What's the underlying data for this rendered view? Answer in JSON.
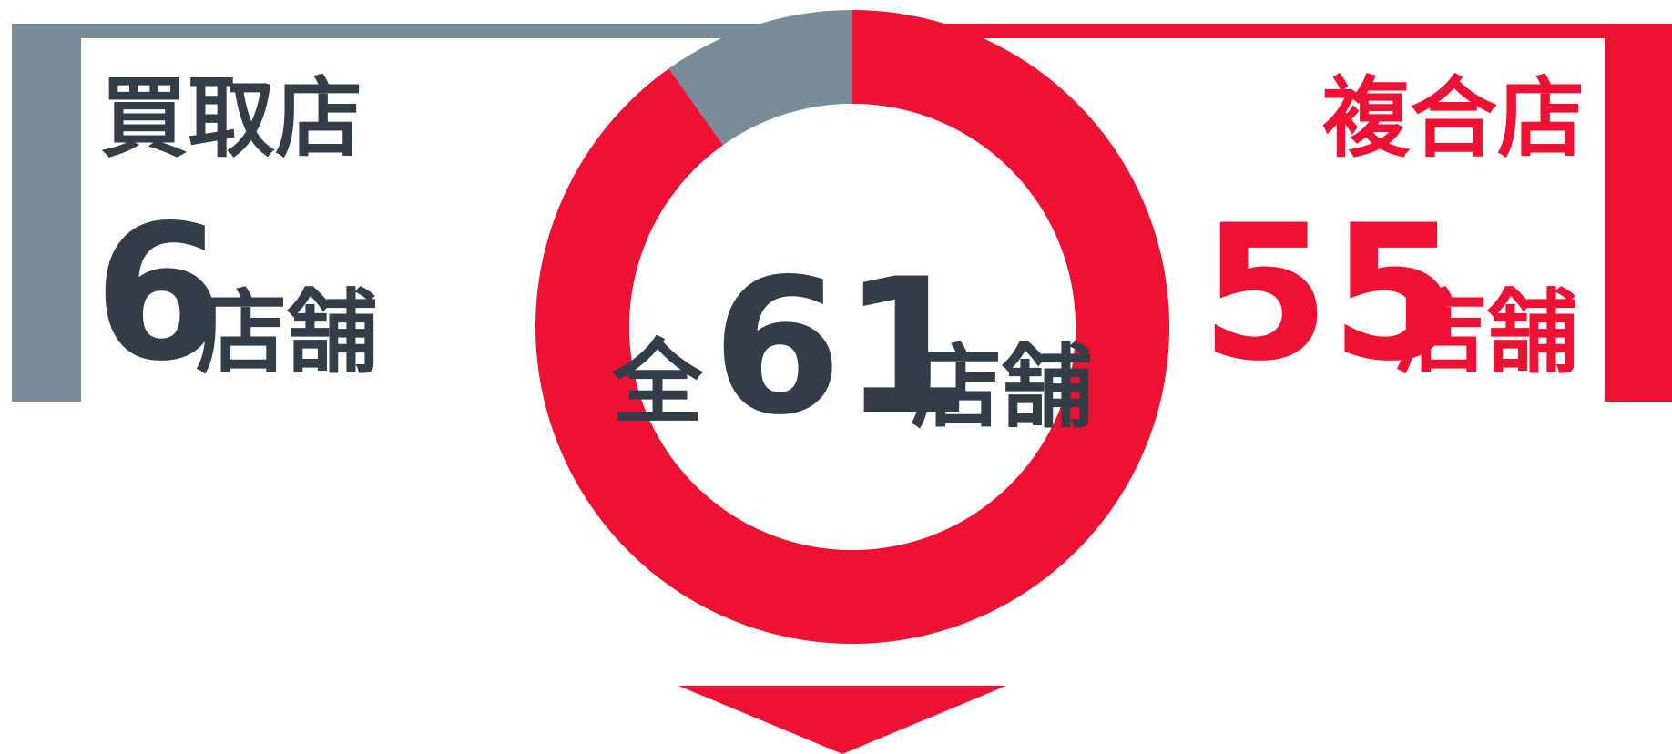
{
  "chart_data": {
    "type": "donut",
    "categories": [
      "買取店",
      "複合店"
    ],
    "values": [
      6,
      55
    ],
    "colors": [
      "#7b8c99",
      "#ee1133"
    ],
    "unit": "店舗",
    "total_label": "全",
    "total": 61
  }
}
